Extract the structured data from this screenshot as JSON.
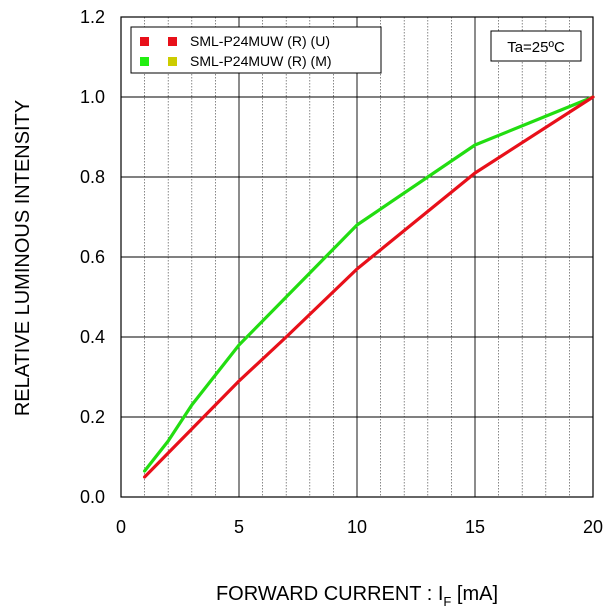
{
  "chart_data": {
    "type": "line",
    "xlabel_main": "FORWARD CURRENT : I",
    "xlabel_sub": "F",
    "xlabel_unit": " [mA]",
    "ylabel": "RELATIVE LUMINOUS INTENSITY",
    "xlim": [
      0,
      20
    ],
    "ylim": [
      0,
      1.2
    ],
    "x_ticks": [
      0,
      5,
      10,
      15,
      20
    ],
    "x_tick_labels": [
      "0",
      "5",
      "10",
      "15",
      "20"
    ],
    "y_ticks": [
      0,
      0.2,
      0.4,
      0.6,
      0.8,
      1.0,
      1.2
    ],
    "y_tick_labels": [
      "0.0",
      "0.2",
      "0.4",
      "0.6",
      "0.8",
      "1.0",
      "1.2"
    ],
    "grid": true,
    "legend_position": "top-left",
    "condition_label": "Ta=25ºC",
    "series": [
      {
        "name": "SML-P24MUW (R) (U)",
        "color": "#e8101a",
        "marker_colors": [
          "#e8101a",
          "#e8101a"
        ],
        "x": [
          1,
          2,
          3,
          5,
          7,
          10,
          15,
          20
        ],
        "y": [
          0.05,
          0.11,
          0.17,
          0.29,
          0.4,
          0.57,
          0.81,
          1.0
        ]
      },
      {
        "name": "SML-P24MUW (R) (M)",
        "color": "#22dd11",
        "marker_colors": [
          "#22ee11",
          "#cccc00"
        ],
        "x": [
          1,
          2,
          3,
          5,
          7,
          10,
          15,
          20
        ],
        "y": [
          0.065,
          0.14,
          0.23,
          0.38,
          0.5,
          0.68,
          0.88,
          1.0
        ]
      }
    ]
  }
}
